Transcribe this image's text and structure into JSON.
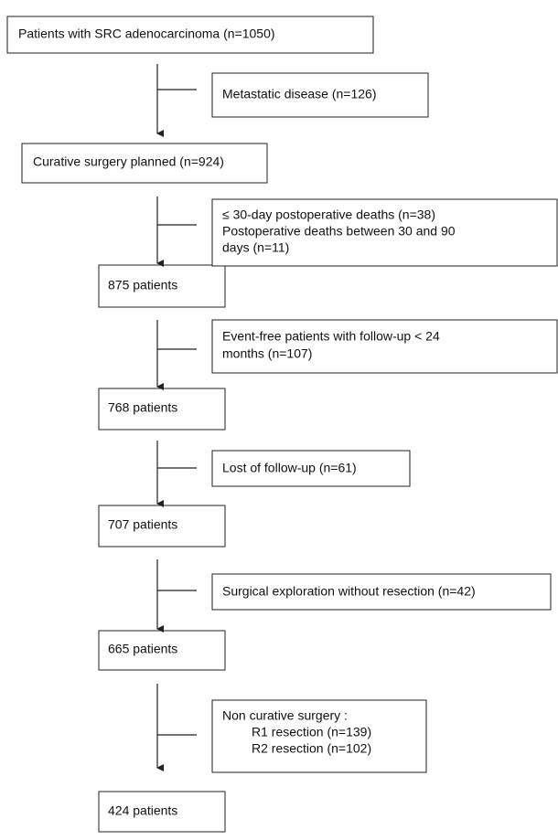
{
  "nodes": [
    {
      "label": "Patients with SRC adenocarcinoma (n=1050)"
    },
    {
      "label": "Curative surgery planned (n=924)"
    },
    {
      "label": "875 patients"
    },
    {
      "label": "768 patients"
    },
    {
      "label": "707 patients"
    },
    {
      "label": "665 patients"
    },
    {
      "label": "424 patients"
    }
  ],
  "exclusions": [
    {
      "lines": [
        "Metastatic disease (n=126)"
      ]
    },
    {
      "lines": [
        "≤ 30-day postoperative deaths (n=38)",
        "Postoperative deaths between 30 and 90",
        "days (n=11)"
      ]
    },
    {
      "lines": [
        "Event-free patients with follow-up < 24",
        "months (n=107)"
      ]
    },
    {
      "lines": [
        "Lost of follow-up (n=61)"
      ]
    },
    {
      "lines": [
        "Surgical exploration without resection (n=42)"
      ]
    },
    {
      "lines": [
        "Non curative surgery :",
        "R1 resection (n=139)",
        "R2 resection (n=102)"
      ]
    }
  ]
}
